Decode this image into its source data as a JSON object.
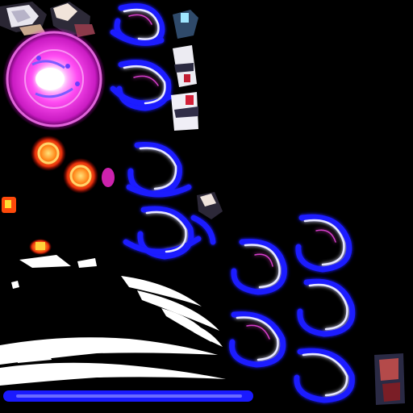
{
  "sprite_sheet": {
    "background": "#000000",
    "palette": {
      "glow_magenta": "#ff3cf0",
      "glow_core": "#ffffff",
      "swirl_blue": "#1a1aff",
      "swirl_highlight": "#e8e8ff",
      "flame_orange": "#ff7a1a",
      "flame_red": "#e0200a",
      "slash_white": "#ffffff",
      "base_blue": "#1e1eff"
    },
    "sprites": [
      {
        "name": "character-arm-sprite"
      },
      {
        "name": "character-fist-sprite"
      },
      {
        "name": "magenta-energy-orb-sprite"
      },
      {
        "name": "flame-burst-sprite"
      },
      {
        "name": "white-slash-streak-sprite"
      },
      {
        "name": "blue-energy-swirl-sprite"
      },
      {
        "name": "character-leg-sprite"
      },
      {
        "name": "blue-ground-line-sprite"
      }
    ]
  }
}
